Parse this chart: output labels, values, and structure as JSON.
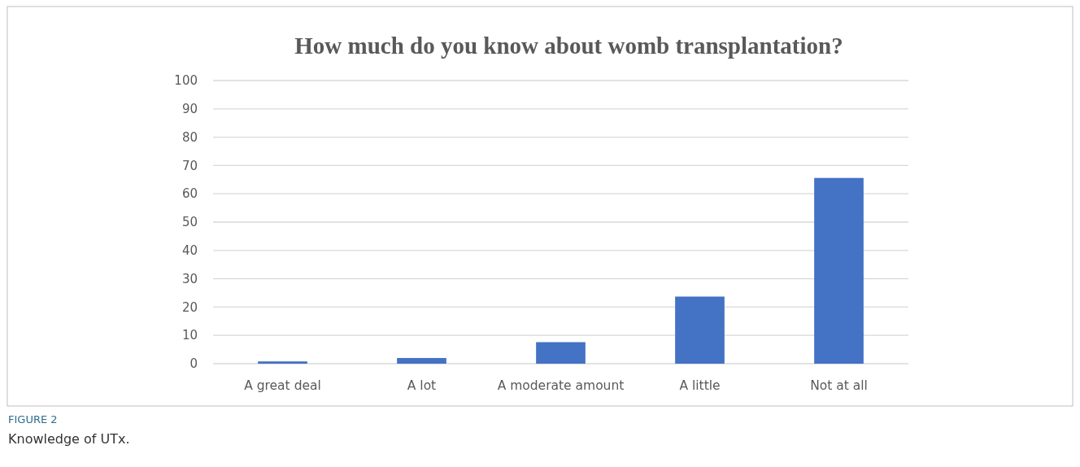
{
  "chart_data": {
    "type": "bar",
    "title": "How much do you know about womb transplantation?",
    "categories": [
      "A great deal",
      "A lot",
      "A moderate amount",
      "A little",
      "Not at all"
    ],
    "values": [
      0.8,
      2,
      7.6,
      23.7,
      65.6
    ],
    "color": "#4472c4",
    "ylim": [
      0,
      100
    ],
    "yticks": [
      0,
      10,
      20,
      30,
      40,
      50,
      60,
      70,
      80,
      90,
      100
    ],
    "grid": "y",
    "annotations": [
      "FIGURE 2",
      "Knowledge of UTx."
    ]
  }
}
